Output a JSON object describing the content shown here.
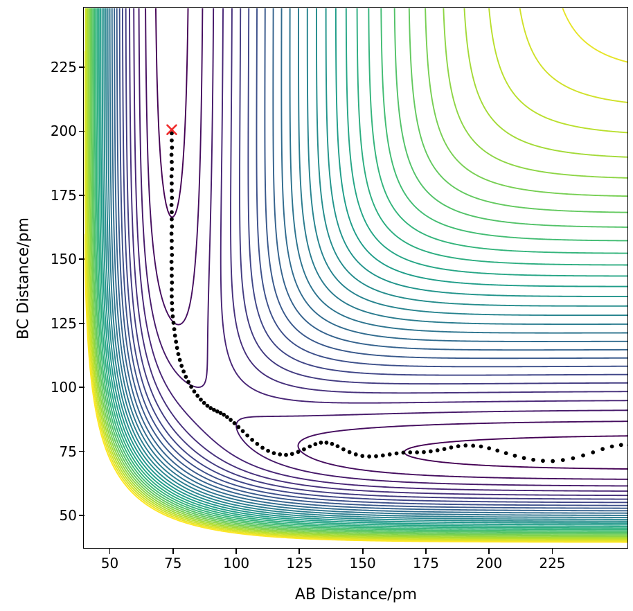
{
  "figure": {
    "background": "#ffffff"
  },
  "chart_data": {
    "type": "contour",
    "title": "",
    "xlabel": "AB Distance/pm",
    "ylabel": "BC Distance/pm",
    "xlim": [
      40,
      255
    ],
    "ylim": [
      37,
      248
    ],
    "x_ticks": [
      50,
      75,
      100,
      125,
      150,
      175,
      200,
      225
    ],
    "y_ticks": [
      50,
      75,
      100,
      125,
      150,
      175,
      200,
      225
    ],
    "grid": false,
    "legend": "none",
    "colormap": "viridis",
    "colormap_stops": [
      "#440154",
      "#482878",
      "#3e4a89",
      "#31688e",
      "#26828e",
      "#1f9e89",
      "#35b779",
      "#6dcd59",
      "#b4de2c",
      "#fde725"
    ],
    "surface": {
      "model": "LEPS collinear A-B-C potential energy surface",
      "D_eV": 4.7466,
      "a_per_pm": 0.019426,
      "re_pm": 74.14,
      "sato": 0.1386
    },
    "contour_levels": {
      "min_eV": -4.66,
      "step_eV": 0.148,
      "count": 30
    },
    "line_width": 1.9,
    "start_marker": {
      "x": 74.5,
      "y": 200.6,
      "symbol": "x",
      "color": "#f02d2d"
    },
    "trajectory": {
      "color": "#000000",
      "marker": "dot",
      "dot_radius": 2.9,
      "points": [
        [
          74.5,
          199.2
        ],
        [
          74.5,
          196.4
        ],
        [
          74.6,
          193.6
        ],
        [
          74.4,
          190.8
        ],
        [
          74.5,
          188.0
        ],
        [
          74.6,
          185.2
        ],
        [
          74.4,
          182.4
        ],
        [
          74.5,
          179.6
        ],
        [
          74.5,
          176.8
        ],
        [
          74.6,
          174.0
        ],
        [
          74.4,
          171.2
        ],
        [
          74.5,
          168.4
        ],
        [
          74.5,
          165.6
        ],
        [
          74.6,
          162.8
        ],
        [
          74.4,
          160.0
        ],
        [
          74.5,
          157.2
        ],
        [
          74.5,
          154.4
        ],
        [
          74.6,
          151.7
        ],
        [
          74.4,
          149.0
        ],
        [
          74.5,
          146.3
        ],
        [
          74.5,
          143.6
        ],
        [
          74.6,
          140.9
        ],
        [
          74.5,
          138.2
        ],
        [
          74.5,
          135.5
        ],
        [
          74.6,
          132.9
        ],
        [
          74.7,
          130.3
        ],
        [
          74.9,
          127.7
        ],
        [
          75.2,
          125.2
        ],
        [
          75.5,
          122.7
        ],
        [
          75.8,
          120.2
        ],
        [
          76.2,
          117.8
        ],
        [
          76.6,
          115.4
        ],
        [
          77.1,
          113.0
        ],
        [
          77.7,
          110.7
        ],
        [
          78.4,
          108.4
        ],
        [
          79.2,
          106.2
        ],
        [
          80.1,
          104.1
        ],
        [
          81.1,
          102.1
        ],
        [
          82.2,
          100.2
        ],
        [
          83.4,
          98.4
        ],
        [
          84.7,
          96.7
        ],
        [
          86.0,
          95.2
        ],
        [
          87.3,
          93.9
        ],
        [
          88.6,
          92.8
        ],
        [
          89.9,
          91.9
        ],
        [
          91.2,
          91.2
        ],
        [
          92.5,
          90.6
        ],
        [
          93.8,
          90.0
        ],
        [
          95.1,
          89.3
        ],
        [
          96.4,
          88.4
        ],
        [
          97.8,
          87.3
        ],
        [
          99.3,
          86.0
        ],
        [
          100.9,
          84.5
        ],
        [
          102.6,
          82.9
        ],
        [
          104.4,
          81.2
        ],
        [
          106.3,
          79.5
        ],
        [
          108.3,
          77.9
        ],
        [
          110.4,
          76.4
        ],
        [
          112.6,
          75.2
        ],
        [
          114.9,
          74.3
        ],
        [
          117.3,
          73.8
        ],
        [
          119.7,
          73.6
        ],
        [
          122.1,
          74.0
        ],
        [
          124.5,
          74.8
        ],
        [
          126.8,
          75.8
        ],
        [
          129.1,
          76.9
        ],
        [
          131.3,
          77.8
        ],
        [
          133.5,
          78.4
        ],
        [
          135.7,
          78.4
        ],
        [
          137.9,
          77.9
        ],
        [
          140.1,
          77.0
        ],
        [
          142.4,
          75.8
        ],
        [
          144.8,
          74.7
        ],
        [
          147.3,
          73.8
        ],
        [
          149.9,
          73.2
        ],
        [
          152.6,
          73.0
        ],
        [
          155.3,
          73.1
        ],
        [
          158.0,
          73.4
        ],
        [
          160.7,
          73.8
        ],
        [
          163.4,
          74.2
        ],
        [
          166.1,
          74.5
        ],
        [
          168.8,
          74.6
        ],
        [
          171.5,
          74.6
        ],
        [
          174.2,
          74.7
        ],
        [
          176.9,
          75.0
        ],
        [
          179.6,
          75.4
        ],
        [
          182.3,
          75.9
        ],
        [
          185.0,
          76.5
        ],
        [
          187.8,
          77.0
        ],
        [
          190.7,
          77.3
        ],
        [
          193.7,
          77.2
        ],
        [
          196.8,
          76.9
        ],
        [
          200.0,
          76.2
        ],
        [
          203.3,
          75.3
        ],
        [
          206.7,
          74.3
        ],
        [
          210.2,
          73.3
        ],
        [
          213.8,
          72.4
        ],
        [
          217.5,
          71.7
        ],
        [
          221.3,
          71.3
        ],
        [
          225.2,
          71.2
        ],
        [
          229.2,
          71.6
        ],
        [
          233.2,
          72.3
        ],
        [
          237.2,
          73.4
        ],
        [
          241.1,
          74.6
        ],
        [
          244.9,
          75.9
        ],
        [
          248.6,
          76.9
        ],
        [
          252.2,
          77.5
        ],
        [
          255.4,
          77.4
        ]
      ]
    }
  },
  "axes": {
    "frame_color": "#000000",
    "tick_color": "#000000",
    "label_color": "#000000"
  }
}
